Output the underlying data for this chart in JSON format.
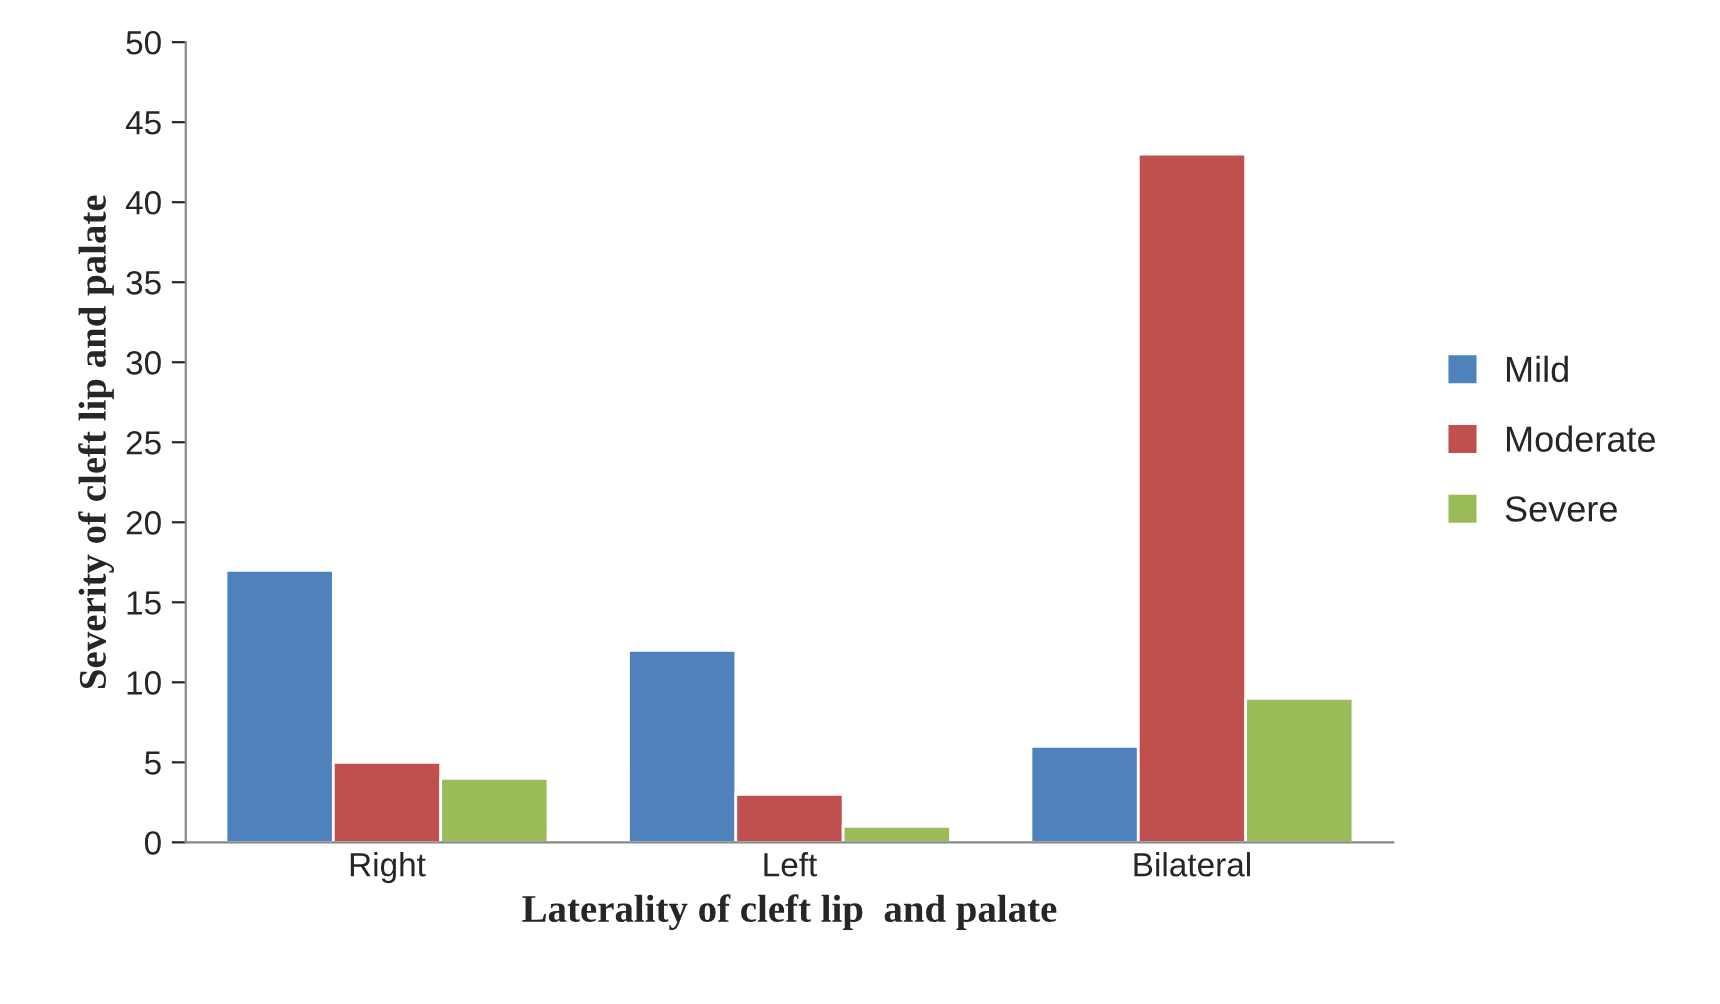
{
  "chart_data": {
    "type": "bar",
    "xlabel": "Laterality of cleft lip  and palate",
    "ylabel": "Severity of cleft lip and palate",
    "categories": [
      "Right",
      "Left",
      "Bilateral"
    ],
    "series": [
      {
        "name": "Mild",
        "color": "#4f81bd",
        "values": [
          17,
          12,
          6
        ]
      },
      {
        "name": "Moderate",
        "color": "#c0504d",
        "values": [
          5,
          3,
          43
        ]
      },
      {
        "name": "Severe",
        "color": "#9bbb59",
        "values": [
          4,
          1,
          9
        ]
      }
    ],
    "ylim": [
      0,
      50
    ],
    "yticks": [
      0,
      5,
      10,
      15,
      20,
      25,
      30,
      35,
      40,
      45,
      50
    ],
    "grid": false,
    "legend": "right"
  }
}
